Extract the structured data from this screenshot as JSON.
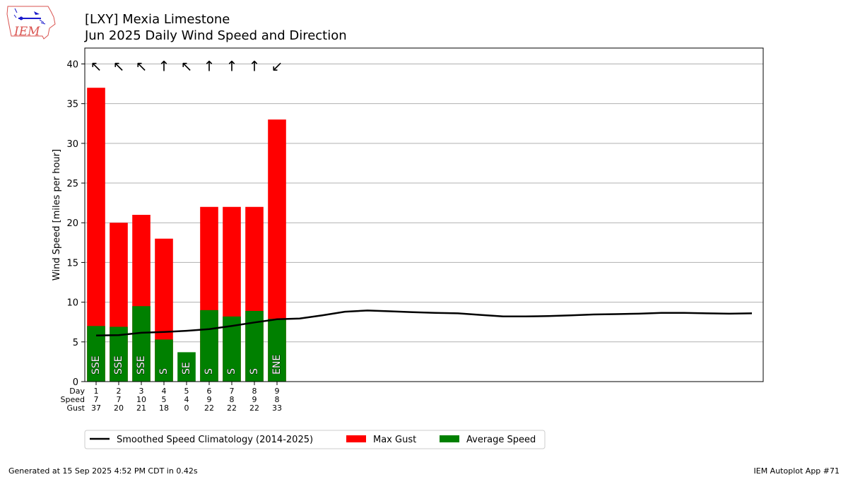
{
  "header": {
    "title": "[LXY] Mexia Limestone",
    "subtitle": "Jun 2025 Daily Wind Speed and Direction",
    "logo_text": "IEM"
  },
  "footer": {
    "generated": "Generated at 15 Sep 2025 4:52 PM CDT in 0.42s",
    "app": "IEM Autoplot App #71"
  },
  "colors": {
    "gust": "#ff0000",
    "average": "#008000",
    "climatology": "#000000",
    "grid": "#b0b0b0"
  },
  "chart_data": {
    "type": "bar",
    "ylabel": "Wind Speed [miles per hour]",
    "ylim": [
      0,
      42
    ],
    "yticks": [
      0,
      5,
      10,
      15,
      20,
      25,
      30,
      35,
      40
    ],
    "xlim": [
      0.5,
      30.5
    ],
    "grid": "horizontal",
    "row_labels": [
      "Day",
      "Speed",
      "Gust"
    ],
    "days": [
      1,
      2,
      3,
      4,
      5,
      6,
      7,
      8,
      9
    ],
    "avg_speed_bar": [
      7.0,
      6.9,
      9.5,
      5.3,
      3.7,
      9.0,
      8.2,
      8.9,
      7.9
    ],
    "max_gust": [
      37,
      20,
      21,
      18,
      0,
      22,
      22,
      22,
      33
    ],
    "speed_label": [
      "7",
      "7",
      "10",
      "5",
      "4",
      "9",
      "8",
      "9",
      "8"
    ],
    "gust_label": [
      "37",
      "20",
      "21",
      "18",
      "0",
      "22",
      "22",
      "22",
      "33"
    ],
    "direction_text": [
      "SSE",
      "SSE",
      "SSE",
      "S",
      "SE",
      "S",
      "S",
      "S",
      "ENE"
    ],
    "arrow_glyphs": [
      "↖",
      "↖",
      "↖",
      "↑",
      "↖",
      "↑",
      "↑",
      "↑",
      "↙"
    ],
    "arrow_rotation_deg": [
      -22,
      -22,
      -22,
      -11,
      -45,
      0,
      0,
      0,
      22
    ],
    "climatology": {
      "x": [
        1,
        2,
        3,
        4,
        5,
        6,
        7,
        8,
        9,
        10,
        11,
        12,
        13,
        14,
        15,
        16,
        17,
        18,
        19,
        20,
        21,
        22,
        23,
        24,
        25,
        26,
        27,
        28,
        29,
        30
      ],
      "y": [
        5.8,
        5.85,
        6.15,
        6.25,
        6.4,
        6.6,
        7.0,
        7.45,
        7.85,
        7.95,
        8.35,
        8.8,
        8.95,
        8.85,
        8.75,
        8.65,
        8.6,
        8.4,
        8.2,
        8.2,
        8.25,
        8.35,
        8.45,
        8.5,
        8.55,
        8.65,
        8.65,
        8.6,
        8.55,
        8.6
      ]
    },
    "legend": {
      "placement": "below",
      "entries": [
        {
          "label": "Smoothed Speed Climatology (2014-2025)",
          "kind": "line",
          "color": "#000000"
        },
        {
          "label": "Max Gust",
          "kind": "patch",
          "color": "#ff0000"
        },
        {
          "label": "Average Speed",
          "kind": "patch",
          "color": "#008000"
        }
      ]
    }
  }
}
